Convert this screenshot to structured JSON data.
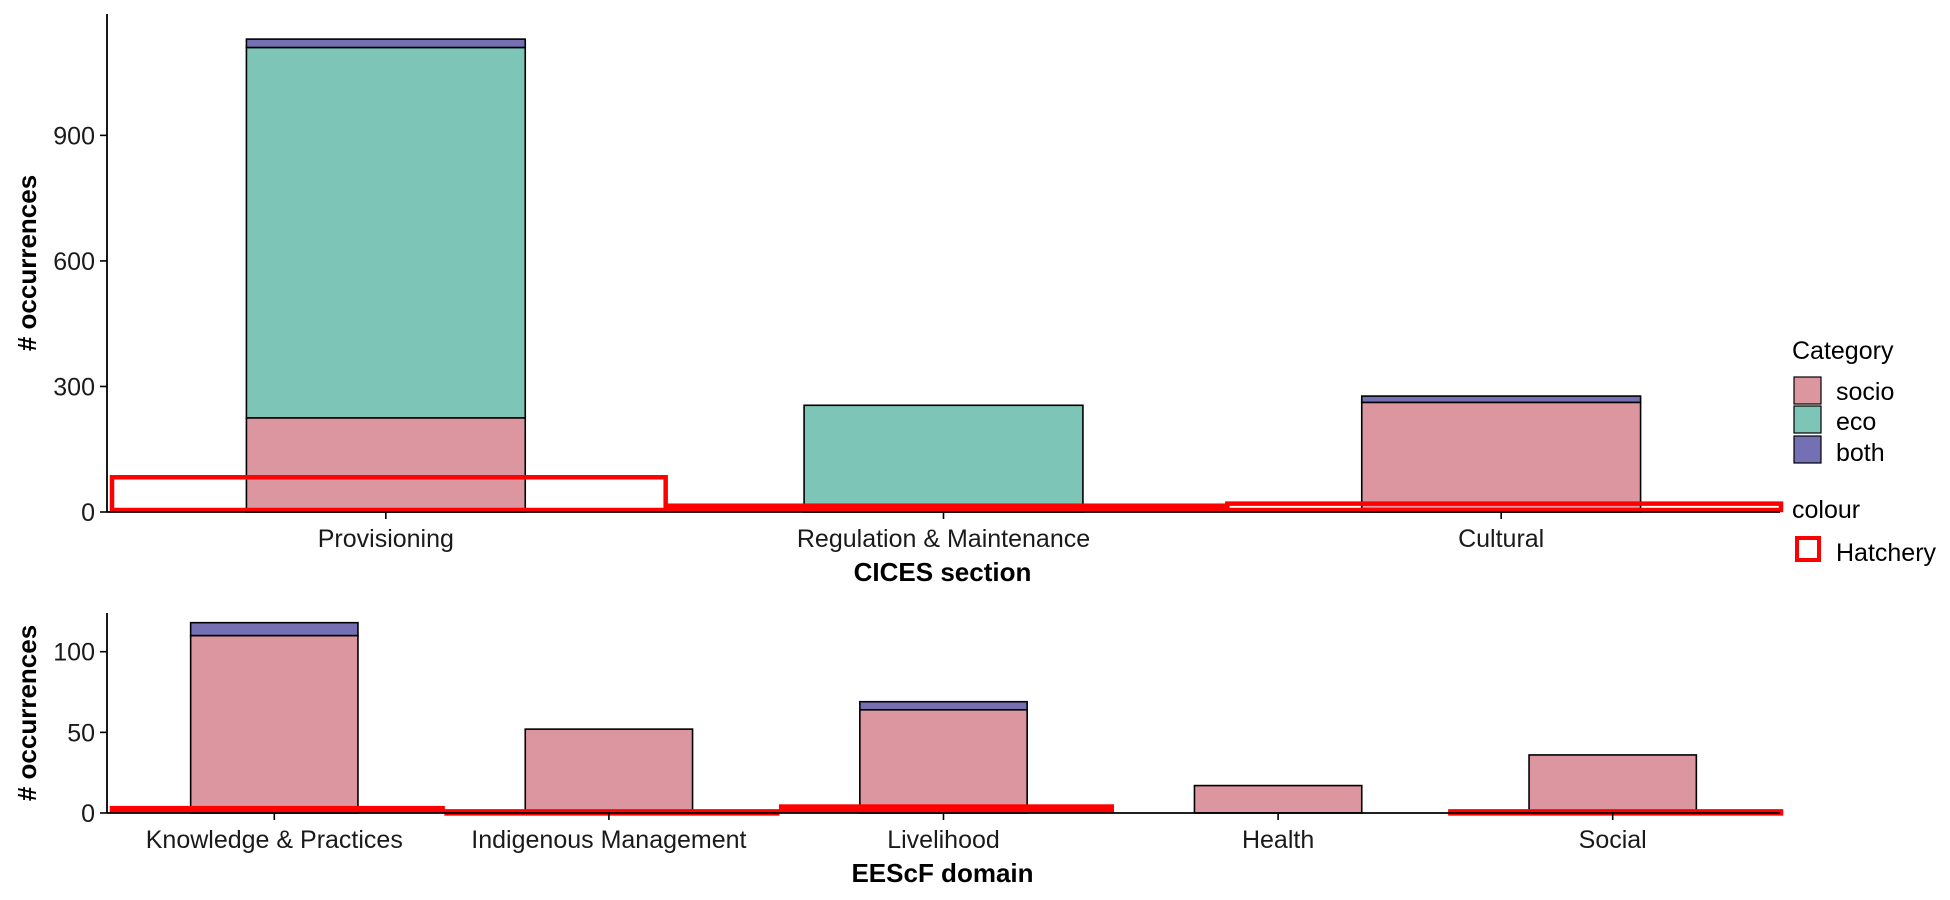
{
  "chart_data": [
    {
      "type": "bar",
      "xlabel": "CICES section",
      "ylabel": "# occurrences",
      "categories": [
        "Provisioning",
        "Regulation & Maintenance",
        "Cultural"
      ],
      "yticks": [
        0,
        300,
        600,
        900
      ],
      "ylim": [
        0,
        1190
      ],
      "series": [
        {
          "name": "socio",
          "values": [
            225,
            0,
            262
          ]
        },
        {
          "name": "eco",
          "values": [
            885,
            255,
            0
          ]
        },
        {
          "name": "both",
          "values": [
            20,
            0,
            15
          ]
        }
      ],
      "overlay": {
        "name": "Hatchery",
        "values": [
          83,
          15,
          20
        ]
      },
      "grid": false
    },
    {
      "type": "bar",
      "xlabel": "EEScF domain",
      "ylabel": "# occurrences",
      "categories": [
        "Knowledge & Practices",
        "Indigenous Management",
        "Livelihood",
        "Health",
        "Social"
      ],
      "yticks": [
        0,
        50,
        100
      ],
      "ylim": [
        0,
        124
      ],
      "series": [
        {
          "name": "socio",
          "values": [
            110,
            52,
            64,
            17,
            36
          ]
        },
        {
          "name": "eco",
          "values": [
            0,
            0,
            0,
            0,
            0
          ]
        },
        {
          "name": "both",
          "values": [
            8,
            0,
            5,
            0,
            0
          ]
        }
      ],
      "overlay": {
        "name": "Hatchery",
        "values": [
          3,
          1,
          4,
          0,
          1
        ]
      },
      "grid": false
    }
  ],
  "legend": {
    "category_title": "Category",
    "category_items": [
      {
        "label": "socio",
        "color": "#dc969f"
      },
      {
        "label": "eco",
        "color": "#7dc5b6"
      },
      {
        "label": "both",
        "color": "#7570b3"
      }
    ],
    "colour_title": "colour",
    "colour_items": [
      {
        "label": "Hatchery",
        "color": "#ff0000"
      }
    ],
    "placement": "right"
  },
  "colors": {
    "socio": "#dc969f",
    "eco": "#7dc5b6",
    "both": "#7570b3",
    "hatchery": "#ff0000",
    "bar_outline": "#000000",
    "axis": "#000000"
  }
}
